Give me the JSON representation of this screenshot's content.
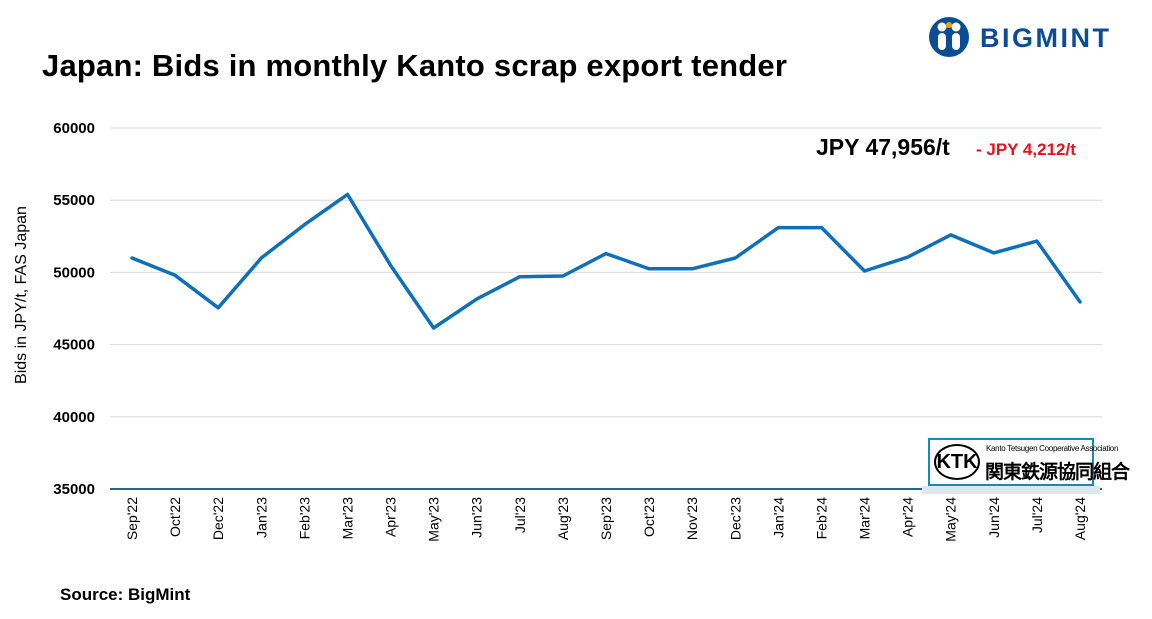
{
  "title": "Japan: Bids in monthly Kanto scrap export tender",
  "brand": {
    "name": "BIGMINT",
    "color": "#0a4d95",
    "icon": "people-icon"
  },
  "annotation": {
    "current": "JPY 47,956/t",
    "change": "- JPY 4,212/t"
  },
  "source": "Source: BigMint",
  "watermark": {
    "mark": "KTK",
    "english": "Kanto Tetsugen Cooperative Association",
    "japanese": "関東鉄源協同組合"
  },
  "chart_data": {
    "type": "line",
    "title": "Japan: Bids in monthly Kanto scrap export tender",
    "xlabel": "",
    "ylabel": "Bids in JPY/t, FAS Japan",
    "ylim": [
      35000,
      60000
    ],
    "yticks": [
      35000,
      40000,
      45000,
      50000,
      55000,
      60000
    ],
    "grid": "horizontal",
    "legend": "none",
    "categories": [
      "Sep'22",
      "Oct'22",
      "Dec'22",
      "Jan'23",
      "Feb'23",
      "Mar'23",
      "Apr'23",
      "May'23",
      "Jun'23",
      "Jul'23",
      "Aug'23",
      "Sep'23",
      "Oct'23",
      "Nov'23",
      "Dec'23",
      "Jan'24",
      "Feb'24",
      "Mar'24",
      "Apr'24",
      "May'24",
      "Jun'24",
      "Jul'24",
      "Aug'24"
    ],
    "series": [
      {
        "color": "#0e6fba",
        "values": [
          51000,
          49800,
          47550,
          51000,
          53300,
          55400,
          50500,
          46150,
          48150,
          49700,
          49750,
          51300,
          50250,
          50250,
          51000,
          53100,
          53100,
          50100,
          51050,
          52600,
          51350,
          52168,
          47956
        ]
      }
    ]
  }
}
